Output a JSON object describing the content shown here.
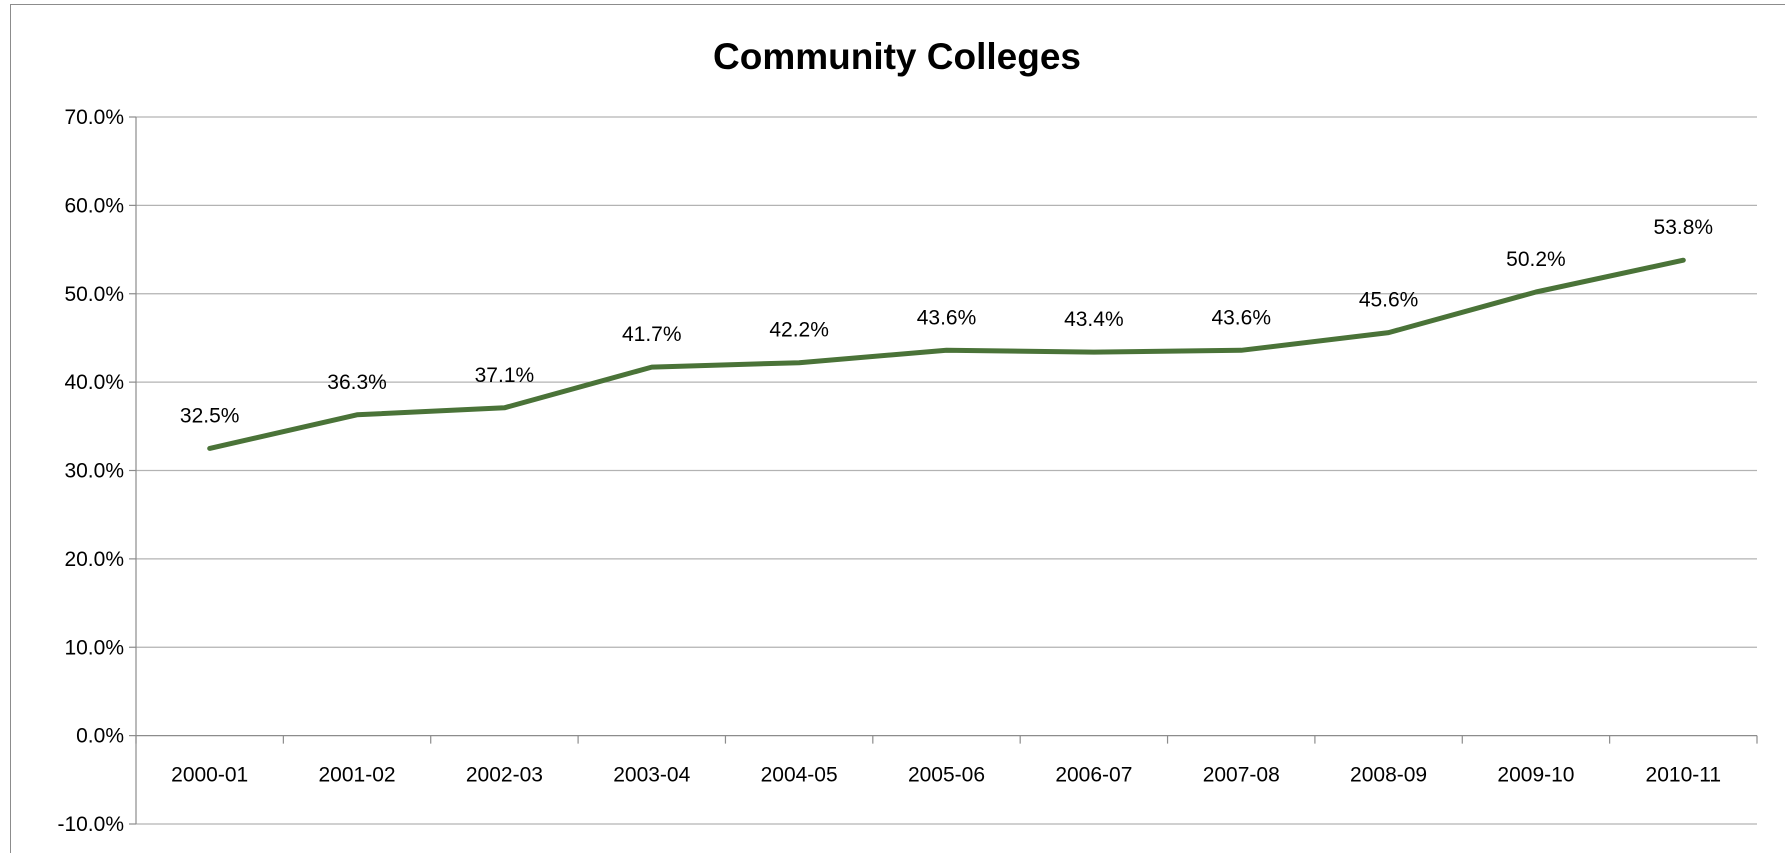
{
  "chart_data": {
    "type": "line",
    "title": "Community Colleges",
    "xlabel": "",
    "ylabel": "",
    "categories": [
      "2000-01",
      "2001-02",
      "2002-03",
      "2003-04",
      "2004-05",
      "2005-06",
      "2006-07",
      "2007-08",
      "2008-09",
      "2009-10",
      "2010-11"
    ],
    "series": [
      {
        "values": [
          32.5,
          36.3,
          37.1,
          41.7,
          42.2,
          43.6,
          43.4,
          43.6,
          45.6,
          50.2,
          53.8
        ],
        "labels": [
          "32.5%",
          "36.3%",
          "37.1%",
          "41.7%",
          "42.2%",
          "43.6%",
          "43.4%",
          "43.6%",
          "45.6%",
          "50.2%",
          "53.8%"
        ],
        "color": "#4a7338"
      }
    ],
    "y_ticks": [
      70,
      60,
      50,
      40,
      30,
      20,
      10,
      0,
      -10
    ],
    "y_tick_labels": [
      "70.0%",
      "60.0%",
      "50.0%",
      "40.0%",
      "30.0%",
      "20.0%",
      "10.0%",
      "0.0%",
      "-10.0%"
    ],
    "ylim": [
      -10,
      70
    ],
    "grid": true,
    "legend": "none",
    "gridline_color": "#b3b3b3",
    "axis_color": "#8c8c8c"
  }
}
